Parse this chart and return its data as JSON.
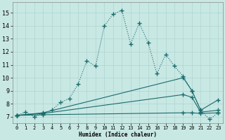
{
  "bg_color": "#c8e8e4",
  "line_color": "#1a6b6b",
  "grid_color": "#d0e8e4",
  "xlabel": "Humidex (Indice chaleur)",
  "xlim": [
    -0.5,
    23.5
  ],
  "ylim": [
    6.5,
    15.8
  ],
  "yticks": [
    7,
    8,
    9,
    10,
    11,
    12,
    13,
    14,
    15
  ],
  "xticks": [
    0,
    1,
    2,
    3,
    4,
    5,
    6,
    7,
    8,
    9,
    10,
    11,
    12,
    13,
    14,
    15,
    16,
    17,
    18,
    19,
    20,
    21,
    22,
    23
  ],
  "line_main_x": [
    0,
    1,
    2,
    3,
    4,
    5,
    6,
    7,
    8,
    9,
    10,
    11,
    12,
    13,
    14,
    15,
    16,
    17,
    18,
    19,
    20,
    21,
    22,
    23
  ],
  "line_main_y": [
    7.1,
    7.35,
    7.0,
    7.25,
    7.5,
    8.1,
    8.4,
    9.5,
    11.3,
    10.9,
    14.0,
    14.9,
    15.2,
    12.6,
    14.2,
    12.7,
    10.3,
    11.8,
    10.9,
    10.1,
    9.0,
    7.5,
    6.8,
    7.3
  ],
  "line2_x": [
    0,
    3,
    19,
    20,
    21,
    23
  ],
  "line2_y": [
    7.1,
    7.3,
    10.0,
    9.0,
    7.5,
    8.3
  ],
  "line3_x": [
    0,
    3,
    19,
    20,
    21,
    23
  ],
  "line3_y": [
    7.1,
    7.25,
    8.7,
    8.5,
    7.35,
    7.5
  ],
  "line4_x": [
    0,
    3,
    19,
    20,
    21,
    23
  ],
  "line4_y": [
    7.1,
    7.15,
    7.3,
    7.3,
    7.25,
    7.3
  ]
}
